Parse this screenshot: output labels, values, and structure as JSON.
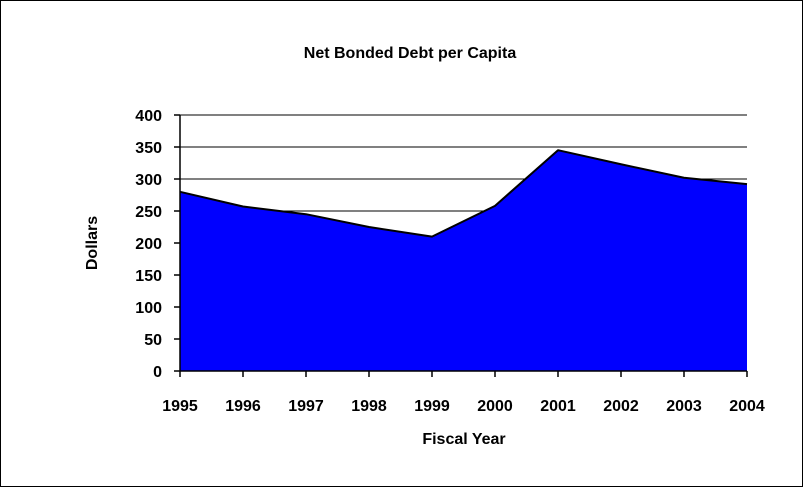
{
  "chart_data": {
    "type": "area",
    "title": "Net Bonded Debt per Capita",
    "xlabel": "Fiscal Year",
    "ylabel": "Dollars",
    "categories": [
      "1995",
      "1996",
      "1997",
      "1998",
      "1999",
      "2000",
      "2001",
      "2002",
      "2003",
      "2004"
    ],
    "values": [
      280,
      257,
      245,
      225,
      210,
      258,
      345,
      323,
      302,
      292
    ],
    "ylim": [
      0,
      400
    ],
    "yticks": [
      "0",
      "50",
      "100",
      "150",
      "200",
      "250",
      "300",
      "350",
      "400"
    ],
    "grid": true,
    "legend": "none",
    "fill_color": "#0000FF",
    "line_color": "#000000"
  }
}
